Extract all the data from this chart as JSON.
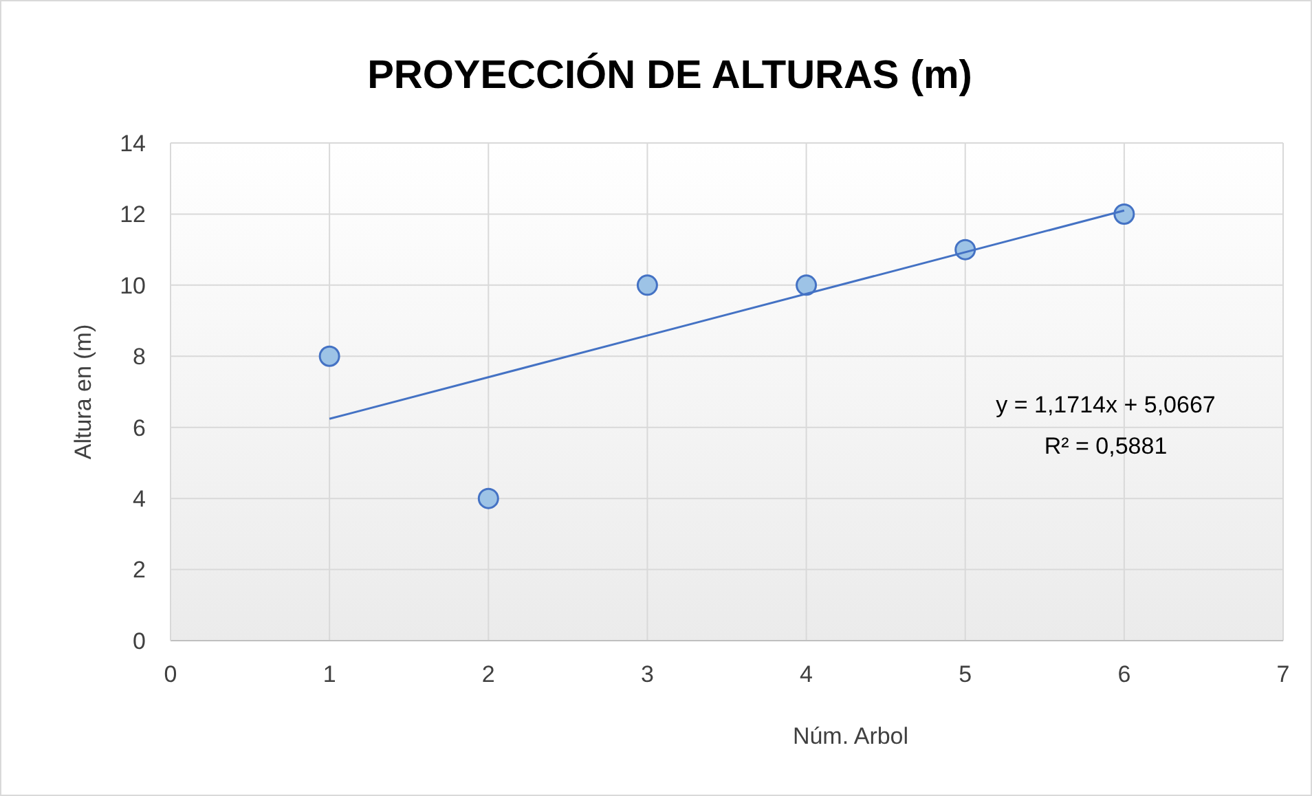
{
  "chart_data": {
    "type": "scatter",
    "title": "PROYECCIÓN DE ALTURAS (m)",
    "xlabel": "Núm. Arbol",
    "ylabel": "Altura en (m)",
    "xlim": [
      0,
      7
    ],
    "xticks": [
      0,
      1,
      2,
      3,
      4,
      5,
      6,
      7
    ],
    "ylim": [
      0,
      14
    ],
    "yticks": [
      0,
      2,
      4,
      6,
      8,
      10,
      12,
      14
    ],
    "grid": true,
    "series": [
      {
        "color": "#9dc3e6",
        "marker": "circle",
        "x": [
          1,
          2,
          3,
          4,
          5,
          6
        ],
        "values": [
          8,
          4,
          10,
          10,
          11,
          12
        ]
      },
      {
        "type": "line",
        "color": "#4472c4",
        "x": [
          1,
          6
        ],
        "values": [
          6.24,
          12.1
        ],
        "line_style": "solid",
        "marker": "none"
      }
    ],
    "annotations": [
      "y = 1,1714x + 5,0667",
      "R² = 0,5881"
    ]
  }
}
